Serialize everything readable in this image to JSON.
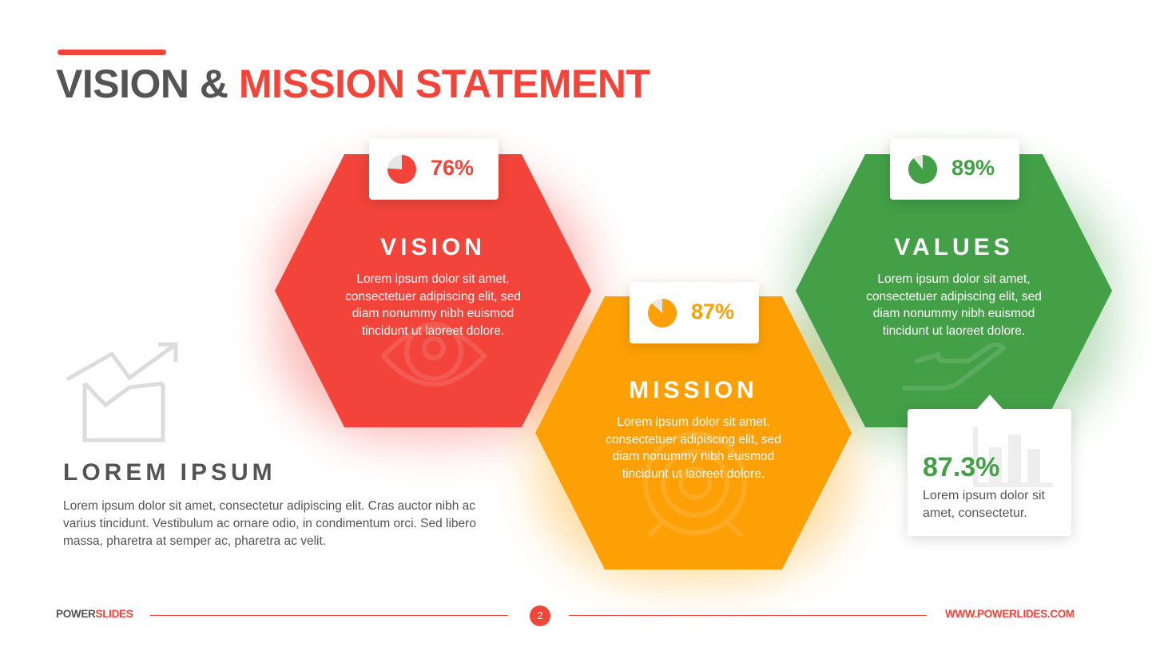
{
  "title": {
    "part1": "VISION & ",
    "part2": "MISSION STATEMENT"
  },
  "colors": {
    "red": "#f2443a",
    "orange": "#fda005",
    "green": "#43a047",
    "gray": "#545454"
  },
  "hexagons": [
    {
      "title": "VISION",
      "percent_label": "76%",
      "percent": 76,
      "lines": [
        "Lorem ipsum dolor sit amet,",
        "consectetuer adipiscing elit, sed",
        "diam nonummy nibh euismod",
        "tincidunt ut laoreet dolore."
      ],
      "icon": "eye-icon"
    },
    {
      "title": "MISSION",
      "percent_label": "87%",
      "percent": 87,
      "lines": [
        "Lorem ipsum dolor sit amet,",
        "consectetuer adipiscing elit, sed",
        "diam nonummy nibh euismod",
        "tincidunt ut laoreet dolore."
      ],
      "icon": "target-icon"
    },
    {
      "title": "VALUES",
      "percent_label": "89%",
      "percent": 89,
      "lines": [
        "Lorem ipsum dolor sit amet,",
        "consectetuer adipiscing elit, sed",
        "diam nonummy nibh euismod",
        "tincidunt ut laoreet dolore."
      ],
      "icon": "hand-icon"
    }
  ],
  "stat": {
    "value": "87.3%",
    "text": "Lorem ipsum dolor sit amet, consectetur.",
    "icon": "bar-chart-icon"
  },
  "left": {
    "icon": "house-growth-icon",
    "title": "LOREM IPSUM",
    "lines": [
      "Lorem ipsum dolor sit amet, consectetur adipiscing elit. Cras auctor nibh ac",
      "varius tincidunt. Vestibulum ac ornare odio, in condimentum orci. Sed libero",
      "massa, pharetra at semper ac, pharetra ac velit."
    ]
  },
  "footer": {
    "brand_part1": "POWER",
    "brand_part2": "SLIDES",
    "page": "2",
    "url": "WWW.POWERLIDES.COM"
  }
}
